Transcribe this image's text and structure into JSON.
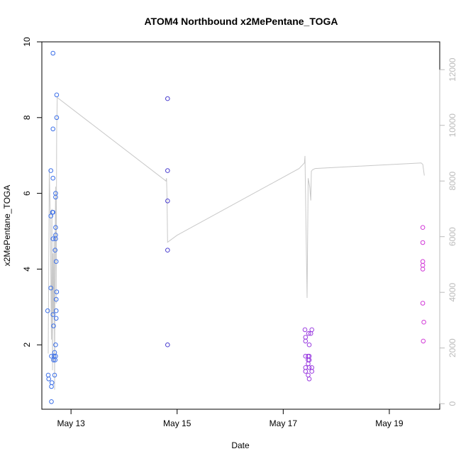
{
  "chart_data": {
    "type": "scatter",
    "title": "ATOM4 Northbound x2MePentane_TOGA",
    "xlabel": "Date",
    "ylabel": "x2MePentane_TOGA",
    "y2label": "",
    "xlim": [
      12.45,
      19.95
    ],
    "ylim": [
      0.3,
      10.0
    ],
    "y2lim": [
      -200,
      13000
    ],
    "x_ticks": [
      {
        "value": 13,
        "label": "May 13"
      },
      {
        "value": 15,
        "label": "May 15"
      },
      {
        "value": 17,
        "label": "May 17"
      },
      {
        "value": 19,
        "label": "May 19"
      }
    ],
    "y_ticks": [
      2,
      4,
      6,
      8,
      10
    ],
    "y2_ticks": [
      0,
      2000,
      4000,
      6000,
      8000,
      10000,
      12000
    ],
    "colors": {
      "point_blue": "#3b6fe8",
      "point_indigo": "#4b3fd0",
      "point_purple": "#9a3ce0",
      "point_magenta": "#d23ad8",
      "line": "#c8c8c8",
      "axis": "#000000",
      "axis_right": "#bbbbbb"
    },
    "series": [
      {
        "color": "point_blue",
        "points": [
          [
            12.56,
            2.9
          ],
          [
            12.57,
            1.2
          ],
          [
            12.58,
            1.1
          ],
          [
            12.62,
            6.6
          ],
          [
            12.62,
            5.4
          ],
          [
            12.62,
            3.5
          ],
          [
            12.63,
            1.7
          ],
          [
            12.63,
            0.9
          ],
          [
            12.63,
            0.5
          ],
          [
            12.64,
            1.0
          ],
          [
            12.65,
            5.5
          ],
          [
            12.66,
            5.5
          ],
          [
            12.66,
            4.8
          ],
          [
            12.66,
            6.4
          ],
          [
            12.66,
            2.8
          ],
          [
            12.66,
            7.7
          ],
          [
            12.66,
            9.7
          ],
          [
            12.67,
            2.5
          ],
          [
            12.67,
            1.6
          ],
          [
            12.68,
            1.7
          ],
          [
            12.69,
            1.2
          ],
          [
            12.69,
            1.8
          ],
          [
            12.7,
            1.6
          ],
          [
            12.7,
            4.5
          ],
          [
            12.71,
            1.7
          ],
          [
            12.71,
            2.0
          ],
          [
            12.71,
            4.8
          ],
          [
            12.71,
            4.9
          ],
          [
            12.71,
            5.1
          ],
          [
            12.71,
            6.0
          ],
          [
            12.71,
            5.9
          ],
          [
            12.72,
            4.2
          ],
          [
            12.72,
            3.2
          ],
          [
            12.72,
            2.7
          ],
          [
            12.72,
            2.9
          ],
          [
            12.73,
            3.4
          ],
          [
            12.73,
            8.0
          ],
          [
            12.73,
            8.6
          ]
        ]
      },
      {
        "color": "point_indigo",
        "points": [
          [
            14.82,
            8.5
          ],
          [
            14.82,
            6.6
          ],
          [
            14.82,
            5.8
          ],
          [
            14.82,
            4.5
          ],
          [
            14.82,
            2.0
          ]
        ]
      },
      {
        "color": "point_purple",
        "points": [
          [
            17.41,
            2.4
          ],
          [
            17.42,
            2.2
          ],
          [
            17.42,
            2.1
          ],
          [
            17.42,
            1.7
          ],
          [
            17.42,
            1.4
          ],
          [
            17.42,
            1.3
          ],
          [
            17.47,
            1.7
          ],
          [
            17.47,
            1.6
          ],
          [
            17.47,
            1.5
          ],
          [
            17.47,
            1.2
          ],
          [
            17.48,
            2.3
          ],
          [
            17.49,
            2.0
          ],
          [
            17.49,
            1.7
          ],
          [
            17.49,
            1.6
          ],
          [
            17.49,
            1.4
          ],
          [
            17.49,
            1.1
          ],
          [
            17.52,
            2.3
          ],
          [
            17.54,
            2.4
          ],
          [
            17.54,
            1.4
          ],
          [
            17.54,
            1.3
          ]
        ]
      },
      {
        "color": "point_magenta",
        "points": [
          [
            19.63,
            5.1
          ],
          [
            19.63,
            4.7
          ],
          [
            19.63,
            4.2
          ],
          [
            19.63,
            4.1
          ],
          [
            19.63,
            4.0
          ],
          [
            19.63,
            3.1
          ],
          [
            19.64,
            2.1
          ],
          [
            19.65,
            2.6
          ]
        ]
      }
    ],
    "line_series": {
      "axis": "right",
      "points": [
        [
          12.57,
          1800
        ],
        [
          12.59,
          8400
        ],
        [
          12.61,
          6600
        ],
        [
          12.63,
          2300
        ],
        [
          12.64,
          7000
        ],
        [
          12.65,
          1200
        ],
        [
          12.66,
          5400
        ],
        [
          12.67,
          3200
        ],
        [
          12.68,
          6100
        ],
        [
          12.69,
          500
        ],
        [
          12.7,
          5500
        ],
        [
          12.71,
          7800
        ],
        [
          12.72,
          3600
        ],
        [
          12.73,
          9800
        ],
        [
          12.74,
          11000
        ],
        [
          14.79,
          8000
        ],
        [
          14.8,
          8100
        ],
        [
          14.81,
          7400
        ],
        [
          14.82,
          5800
        ],
        [
          15.0,
          6050
        ],
        [
          17.3,
          8450
        ],
        [
          17.4,
          8650
        ],
        [
          17.41,
          8900
        ],
        [
          17.43,
          6300
        ],
        [
          17.45,
          3800
        ],
        [
          17.47,
          8100
        ],
        [
          17.5,
          7800
        ],
        [
          17.52,
          7300
        ],
        [
          17.53,
          8350
        ],
        [
          17.55,
          8400
        ],
        [
          17.6,
          8450
        ],
        [
          19.6,
          8650
        ],
        [
          19.63,
          8600
        ],
        [
          19.66,
          8200
        ]
      ]
    }
  }
}
